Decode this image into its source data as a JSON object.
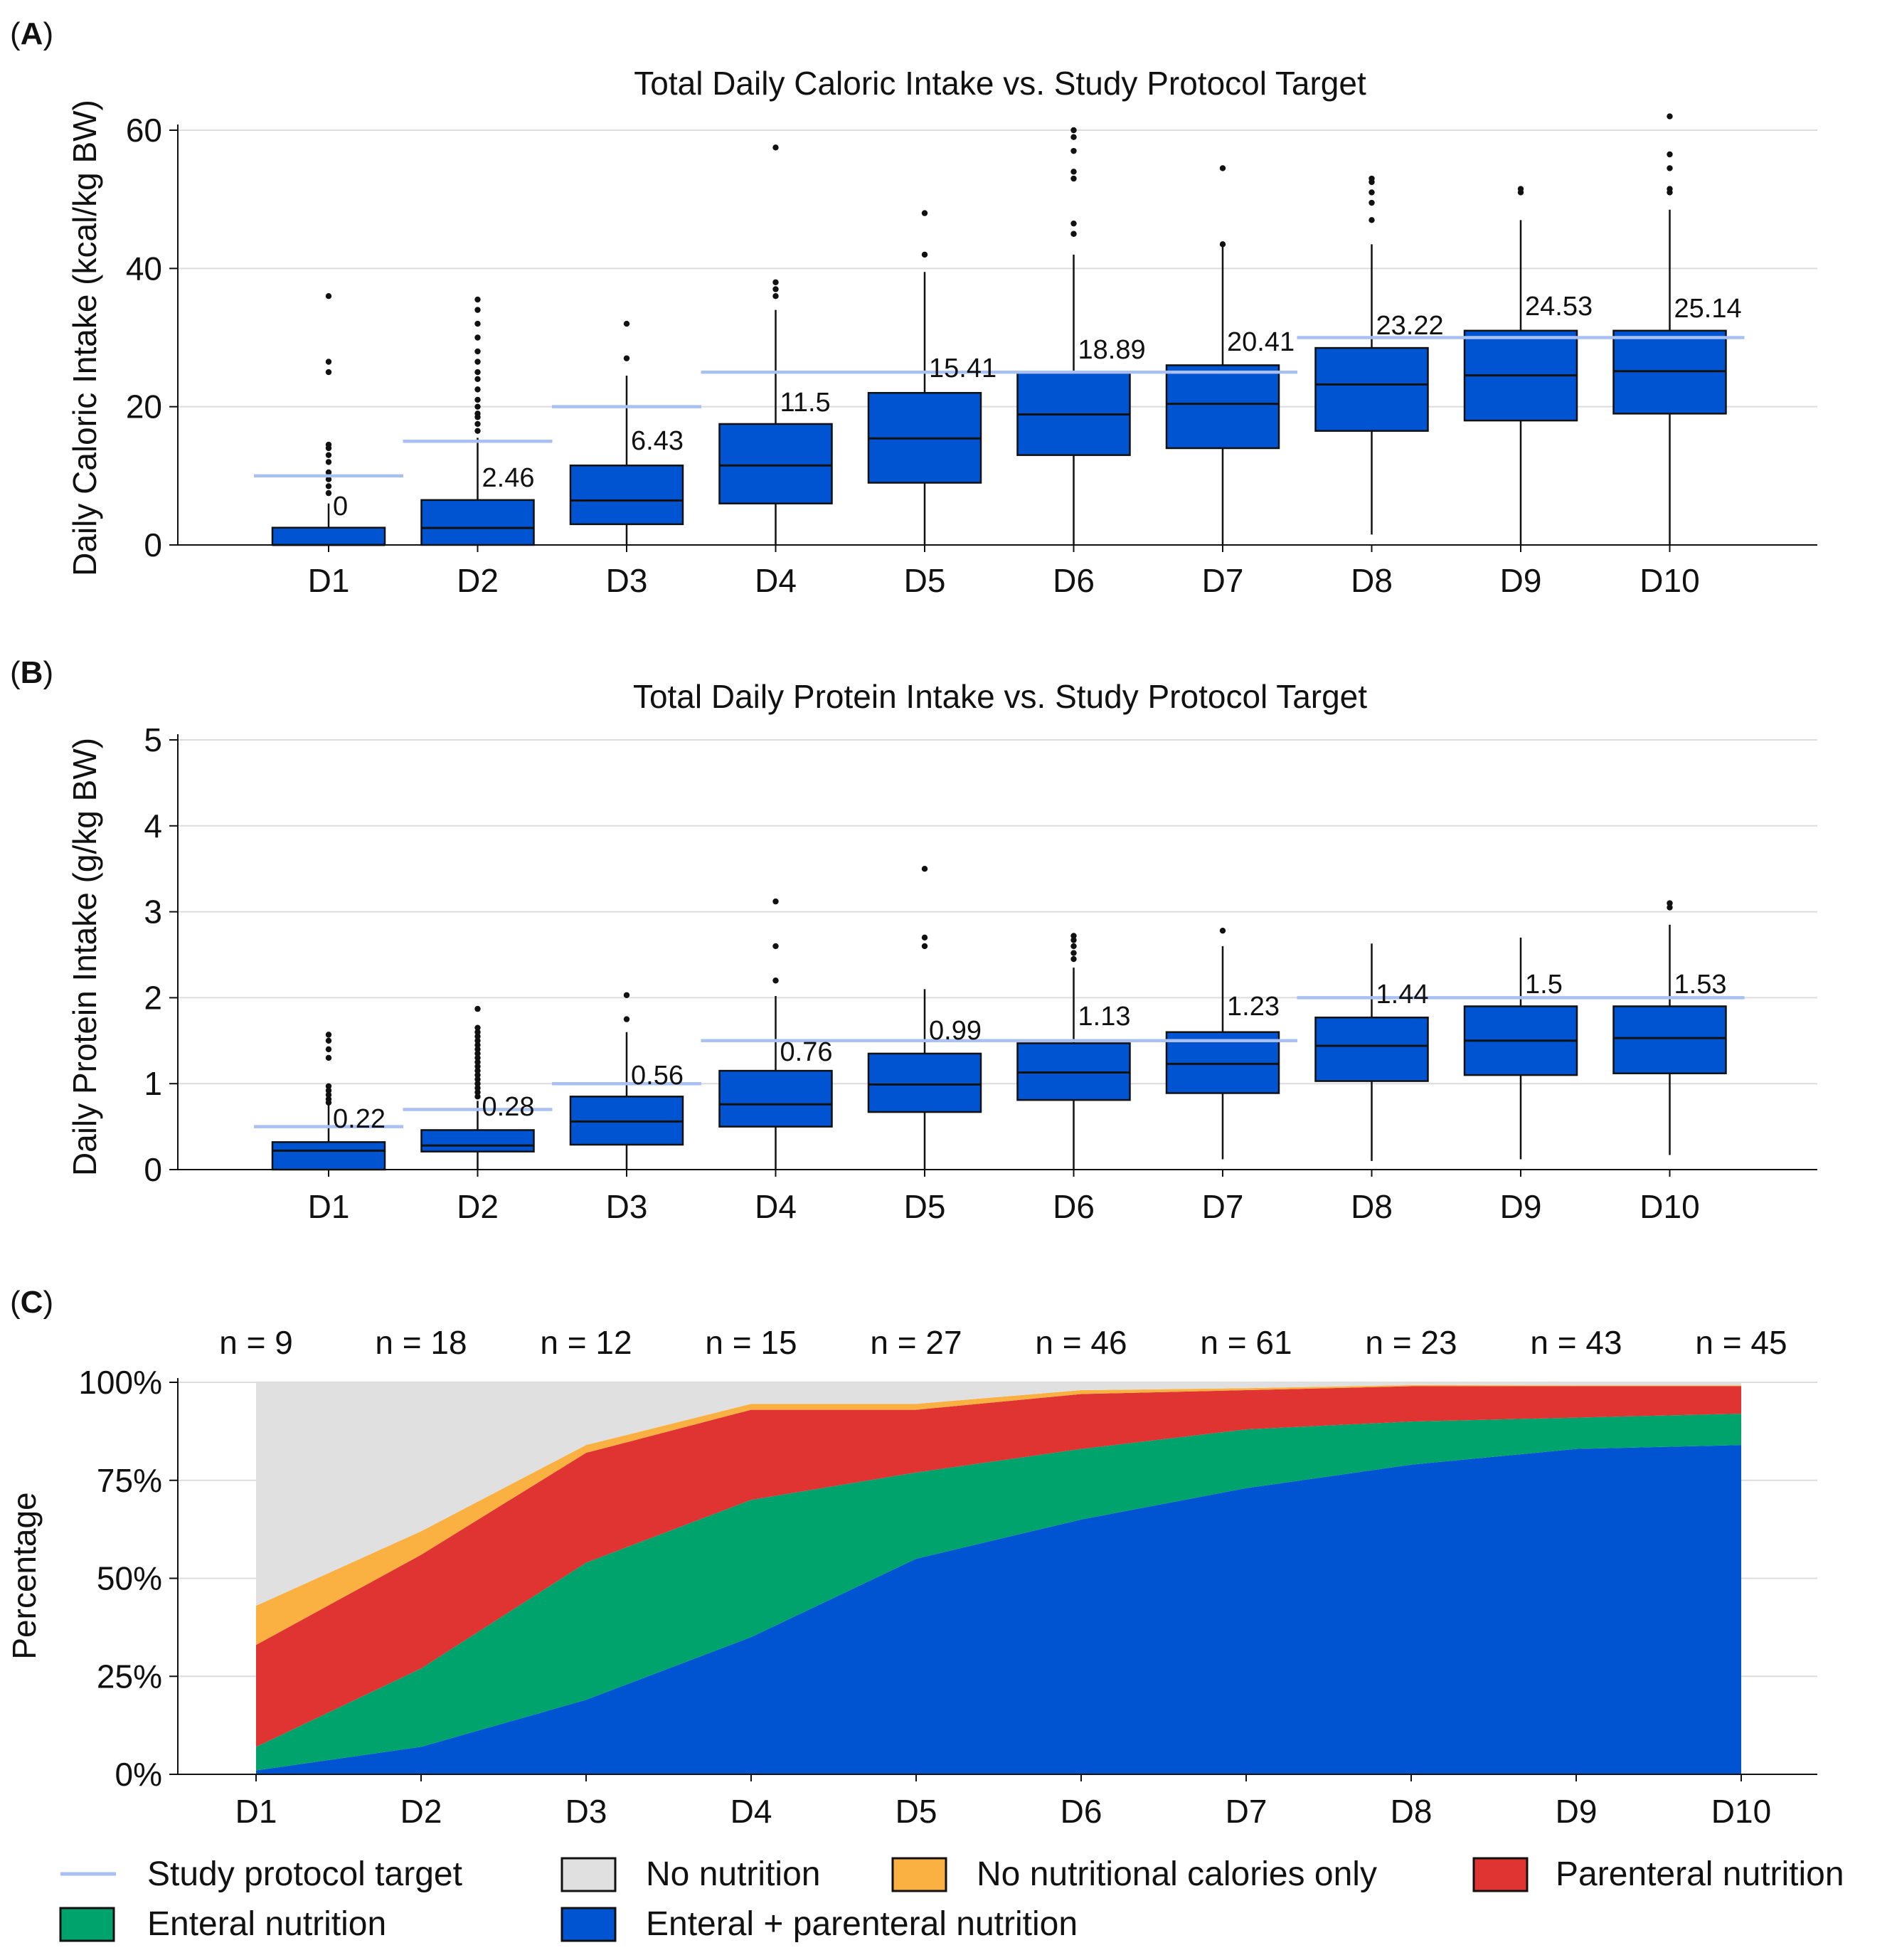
{
  "panel_labels": [
    "A",
    "B",
    "C"
  ],
  "legend": {
    "target": {
      "label": "Study protocol target",
      "color": "#a9c0f3"
    },
    "no_nutrition": {
      "label": "No nutrition",
      "color": "#e0e0e0"
    },
    "no_calories": {
      "label": "No nutritional calories only",
      "color": "#fbb042"
    },
    "parenteral": {
      "label": "Parenteral nutrition",
      "color": "#e03432"
    },
    "enteral": {
      "label": "Enteral nutrition",
      "color": "#00a36c"
    },
    "both": {
      "label": "Enteral + parenteral nutrition",
      "color": "#0154d1"
    }
  },
  "colors": {
    "box_fill": "#0154d1",
    "box_stroke": "#111111",
    "target_line": "#a9c0f3",
    "grid": "#dcdcdc"
  },
  "chart_data": [
    {
      "type": "box",
      "title": "Total Daily Caloric Intake vs. Study Protocol Target",
      "ylabel": "Daily Caloric Intake (kcal/kg BW)",
      "xlabel": "",
      "ylim": [
        0,
        60
      ],
      "yticks": [
        0,
        20,
        40,
        60
      ],
      "categories": [
        "D1",
        "D2",
        "D3",
        "D4",
        "D5",
        "D6",
        "D7",
        "D8",
        "D9",
        "D10"
      ],
      "median_labels": [
        "0",
        "2.46",
        "6.43",
        "11.5",
        "15.41",
        "18.89",
        "20.41",
        "23.22",
        "24.53",
        "25.14"
      ],
      "boxes": [
        {
          "median": 0,
          "q1": 0,
          "q3": 2.5,
          "whisker_low": 0,
          "whisker_high": 6,
          "outliers": [
            7.5,
            8.5,
            9.5,
            10.5,
            12,
            13,
            14,
            14.5,
            25,
            26.5,
            36
          ]
        },
        {
          "median": 2.46,
          "q1": 0,
          "q3": 6.5,
          "whisker_low": 0,
          "whisker_high": 15.5,
          "outliers": [
            16.5,
            17.5,
            18.5,
            19,
            20,
            21,
            22.5,
            24,
            25,
            26.5,
            28,
            30,
            32,
            34,
            35.5
          ]
        },
        {
          "median": 6.43,
          "q1": 3,
          "q3": 11.5,
          "whisker_low": 0,
          "whisker_high": 24.5,
          "outliers": [
            27,
            32
          ]
        },
        {
          "median": 11.5,
          "q1": 6,
          "q3": 17.5,
          "whisker_low": 0,
          "whisker_high": 34,
          "outliers": [
            36,
            37,
            38,
            57.5
          ]
        },
        {
          "median": 15.41,
          "q1": 9,
          "q3": 22,
          "whisker_low": 0,
          "whisker_high": 39.5,
          "outliers": [
            42,
            48
          ]
        },
        {
          "median": 18.89,
          "q1": 13,
          "q3": 25,
          "whisker_low": 0,
          "whisker_high": 42,
          "outliers": [
            45,
            46.5,
            53,
            54,
            57,
            59,
            60
          ]
        },
        {
          "median": 20.41,
          "q1": 14,
          "q3": 26,
          "whisker_low": 0,
          "whisker_high": 43.5,
          "outliers": [
            43.5,
            54.5
          ]
        },
        {
          "median": 23.22,
          "q1": 16.5,
          "q3": 28.5,
          "whisker_low": 1.5,
          "whisker_high": 43.5,
          "outliers": [
            47,
            49.5,
            51,
            52.5,
            53
          ]
        },
        {
          "median": 24.53,
          "q1": 18,
          "q3": 31,
          "whisker_low": 0,
          "whisker_high": 47,
          "outliers": [
            51,
            51.5
          ]
        },
        {
          "median": 25.14,
          "q1": 19,
          "q3": 31,
          "whisker_low": 0,
          "whisker_high": 48.5,
          "outliers": [
            51,
            51.5,
            54.5,
            56.5,
            62
          ]
        }
      ],
      "targets": [
        {
          "from": 0,
          "to": 0,
          "value": 10
        },
        {
          "from": 1,
          "to": 1,
          "value": 15
        },
        {
          "from": 2,
          "to": 2,
          "value": 20
        },
        {
          "from": 3,
          "to": 6,
          "value": 25
        },
        {
          "from": 7,
          "to": 9,
          "value": 30
        }
      ]
    },
    {
      "type": "box",
      "title": "Total Daily Protein Intake vs. Study Protocol Target",
      "ylabel": "Daily Protein Intake (g/kg BW)",
      "xlabel": "",
      "ylim": [
        0,
        5
      ],
      "yticks": [
        0,
        1,
        2,
        3,
        4,
        5
      ],
      "categories": [
        "D1",
        "D2",
        "D3",
        "D4",
        "D5",
        "D6",
        "D7",
        "D8",
        "D9",
        "D10"
      ],
      "median_labels": [
        "0.22",
        "0.28",
        "0.56",
        "0.76",
        "0.99",
        "1.13",
        "1.23",
        "1.44",
        "1.5",
        "1.53"
      ],
      "boxes": [
        {
          "median": 0.22,
          "q1": 0,
          "q3": 0.32,
          "whisker_low": 0,
          "whisker_high": 0.75,
          "outliers": [
            0.78,
            0.82,
            0.87,
            0.92,
            0.97,
            1.3,
            1.4,
            1.5,
            1.57
          ]
        },
        {
          "median": 0.28,
          "q1": 0.21,
          "q3": 0.46,
          "whisker_low": 0,
          "whisker_high": 0.8,
          "outliers": [
            0.85,
            0.9,
            0.95,
            1.0,
            1.05,
            1.1,
            1.15,
            1.2,
            1.25,
            1.3,
            1.35,
            1.4,
            1.45,
            1.5,
            1.55,
            1.6,
            1.65,
            1.87
          ]
        },
        {
          "median": 0.56,
          "q1": 0.29,
          "q3": 0.85,
          "whisker_low": 0,
          "whisker_high": 1.6,
          "outliers": [
            1.75,
            2.03
          ]
        },
        {
          "median": 0.76,
          "q1": 0.5,
          "q3": 1.15,
          "whisker_low": 0,
          "whisker_high": 2.02,
          "outliers": [
            2.2,
            2.6,
            3.12
          ]
        },
        {
          "median": 0.99,
          "q1": 0.67,
          "q3": 1.35,
          "whisker_low": 0,
          "whisker_high": 2.1,
          "outliers": [
            2.6,
            2.7,
            3.5
          ]
        },
        {
          "median": 1.13,
          "q1": 0.81,
          "q3": 1.47,
          "whisker_low": 0,
          "whisker_high": 2.35,
          "outliers": [
            2.45,
            2.52,
            2.6,
            2.67,
            2.72
          ]
        },
        {
          "median": 1.23,
          "q1": 0.89,
          "q3": 1.6,
          "whisker_low": 0.12,
          "whisker_high": 2.6,
          "outliers": [
            2.78
          ]
        },
        {
          "median": 1.44,
          "q1": 1.03,
          "q3": 1.77,
          "whisker_low": 0.1,
          "whisker_high": 2.63,
          "outliers": []
        },
        {
          "median": 1.5,
          "q1": 1.1,
          "q3": 1.9,
          "whisker_low": 0.12,
          "whisker_high": 2.7,
          "outliers": []
        },
        {
          "median": 1.53,
          "q1": 1.12,
          "q3": 1.9,
          "whisker_low": 0.17,
          "whisker_high": 2.85,
          "outliers": [
            3.05,
            3.1
          ]
        }
      ],
      "targets": [
        {
          "from": 0,
          "to": 0,
          "value": 0.5
        },
        {
          "from": 1,
          "to": 1,
          "value": 0.7
        },
        {
          "from": 2,
          "to": 2,
          "value": 1.0
        },
        {
          "from": 3,
          "to": 6,
          "value": 1.5
        },
        {
          "from": 7,
          "to": 9,
          "value": 2.0
        }
      ]
    },
    {
      "type": "area",
      "title": "",
      "ylabel": "Percentage",
      "xlabel": "",
      "ylim": [
        0,
        100
      ],
      "yticks": [
        "0%",
        "25%",
        "50%",
        "75%",
        "100%"
      ],
      "categories": [
        "D1",
        "D2",
        "D3",
        "D4",
        "D5",
        "D6",
        "D7",
        "D8",
        "D9",
        "D10"
      ],
      "n_labels": [
        "n = 9",
        "n = 18",
        "n = 12",
        "n = 15",
        "n = 27",
        "n = 46",
        "n = 61",
        "n = 23",
        "n = 43",
        "n = 45"
      ],
      "series": [
        {
          "name": "Enteral + parenteral nutrition",
          "key": "both",
          "values": [
            1,
            7,
            19,
            35,
            55,
            65,
            73,
            79,
            83,
            84
          ]
        },
        {
          "name": "Enteral nutrition",
          "key": "enteral",
          "values": [
            6,
            20,
            35,
            35,
            22,
            18,
            15,
            11,
            8,
            8
          ]
        },
        {
          "name": "Parenteral nutrition",
          "key": "parenteral",
          "values": [
            26,
            29,
            28,
            23,
            16,
            14,
            10,
            9,
            8,
            7
          ]
        },
        {
          "name": "No nutritional calories only",
          "key": "no_calories",
          "values": [
            10,
            6,
            2,
            1.5,
            1.5,
            1,
            0.5,
            0.3,
            0.2,
            0.2
          ]
        },
        {
          "name": "No nutrition",
          "key": "no_nutrition",
          "values": [
            57,
            38,
            16,
            5.5,
            5.5,
            2,
            1.5,
            0.7,
            0.8,
            0.8
          ]
        }
      ]
    }
  ]
}
